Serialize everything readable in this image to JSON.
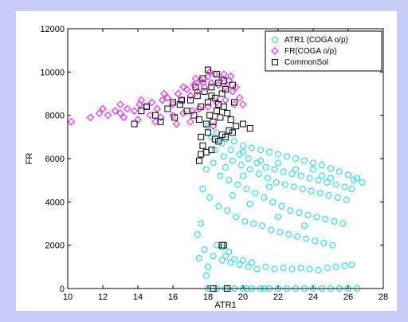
{
  "window": {
    "background": "#c9ccf7"
  },
  "chart_data": {
    "type": "scatter",
    "title": "",
    "xlabel": "ATR1",
    "ylabel": "FR",
    "xlim": [
      10,
      28
    ],
    "ylim": [
      0,
      12000
    ],
    "xticks": [
      10,
      12,
      14,
      16,
      18,
      20,
      22,
      24,
      26,
      28
    ],
    "yticks": [
      0,
      2000,
      4000,
      6000,
      8000,
      10000,
      12000
    ],
    "grid": false,
    "legend_position": "top-right",
    "series": [
      {
        "name": "ATR1 (COGA o/p)",
        "marker": "circle",
        "color": "#00e5e5",
        "points": [
          [
            18.0,
            7500
          ],
          [
            18.5,
            7200
          ],
          [
            19.0,
            6900
          ],
          [
            19.5,
            6800
          ],
          [
            20.0,
            6600
          ],
          [
            20.5,
            6500
          ],
          [
            21.0,
            6400
          ],
          [
            21.5,
            6300
          ],
          [
            22.0,
            6200
          ],
          [
            22.5,
            6100
          ],
          [
            23.0,
            6000
          ],
          [
            23.5,
            5900
          ],
          [
            24.0,
            5800
          ],
          [
            24.5,
            5700
          ],
          [
            25.0,
            5550
          ],
          [
            25.5,
            5400
          ],
          [
            26.0,
            5250
          ],
          [
            26.5,
            5100
          ],
          [
            26.8,
            4900
          ],
          [
            26.3,
            5000
          ],
          [
            18.2,
            7000
          ],
          [
            18.8,
            6700
          ],
          [
            19.3,
            6400
          ],
          [
            19.8,
            6200
          ],
          [
            20.3,
            6000
          ],
          [
            20.8,
            5800
          ],
          [
            21.3,
            5600
          ],
          [
            21.8,
            5500
          ],
          [
            22.3,
            5400
          ],
          [
            22.8,
            5300
          ],
          [
            23.3,
            5200
          ],
          [
            23.8,
            5100
          ],
          [
            24.3,
            5000
          ],
          [
            24.8,
            4900
          ],
          [
            25.3,
            4800
          ],
          [
            25.8,
            4700
          ],
          [
            26.2,
            4600
          ],
          [
            24.0,
            5500
          ],
          [
            25.0,
            5100
          ],
          [
            22.0,
            5800
          ],
          [
            18.4,
            6400
          ],
          [
            18.9,
            6100
          ],
          [
            19.4,
            5900
          ],
          [
            19.9,
            5700
          ],
          [
            20.4,
            5500
          ],
          [
            20.9,
            5300
          ],
          [
            21.4,
            5100
          ],
          [
            21.9,
            4900
          ],
          [
            22.4,
            4800
          ],
          [
            22.9,
            4700
          ],
          [
            23.4,
            4600
          ],
          [
            23.9,
            4500
          ],
          [
            24.4,
            4400
          ],
          [
            24.9,
            4300
          ],
          [
            25.4,
            4200
          ],
          [
            25.9,
            4100
          ],
          [
            21.0,
            5900
          ],
          [
            20.0,
            6300
          ],
          [
            23.0,
            5500
          ],
          [
            24.5,
            5200
          ],
          [
            17.9,
            5500
          ],
          [
            18.3,
            5800
          ],
          [
            18.7,
            5200
          ],
          [
            19.2,
            5000
          ],
          [
            19.7,
            4800
          ],
          [
            20.2,
            4600
          ],
          [
            20.7,
            4400
          ],
          [
            21.2,
            4200
          ],
          [
            21.7,
            4000
          ],
          [
            22.2,
            3800
          ],
          [
            22.7,
            3600
          ],
          [
            23.2,
            3500
          ],
          [
            23.7,
            3400
          ],
          [
            24.2,
            3300
          ],
          [
            24.7,
            3200
          ],
          [
            25.2,
            3100
          ],
          [
            25.7,
            3000
          ],
          [
            19.0,
            5600
          ],
          [
            20.0,
            5200
          ],
          [
            21.5,
            4700
          ],
          [
            17.7,
            4600
          ],
          [
            18.1,
            4200
          ],
          [
            18.6,
            3800
          ],
          [
            19.1,
            3600
          ],
          [
            19.6,
            3300
          ],
          [
            20.1,
            3100
          ],
          [
            20.6,
            3000
          ],
          [
            21.1,
            2900
          ],
          [
            21.6,
            2700
          ],
          [
            22.1,
            2600
          ],
          [
            22.6,
            2500
          ],
          [
            23.1,
            2400
          ],
          [
            23.6,
            2300
          ],
          [
            24.1,
            2200
          ],
          [
            24.6,
            2100
          ],
          [
            25.1,
            2000
          ],
          [
            19.4,
            4300
          ],
          [
            20.4,
            3900
          ],
          [
            22.0,
            3300
          ],
          [
            23.5,
            2900
          ],
          [
            17.6,
            3000
          ],
          [
            17.4,
            2500
          ],
          [
            17.8,
            1800
          ],
          [
            18.3,
            1500
          ],
          [
            18.8,
            1300
          ],
          [
            19.3,
            1200
          ],
          [
            19.8,
            1100
          ],
          [
            20.3,
            1000
          ],
          [
            20.8,
            900
          ],
          [
            21.3,
            1000
          ],
          [
            21.8,
            900
          ],
          [
            22.3,
            950
          ],
          [
            22.8,
            900
          ],
          [
            23.3,
            950
          ],
          [
            23.8,
            900
          ],
          [
            24.3,
            850
          ],
          [
            24.8,
            950
          ],
          [
            25.3,
            1000
          ],
          [
            25.8,
            1050
          ],
          [
            26.2,
            1100
          ],
          [
            18.5,
            2000
          ],
          [
            19.0,
            1500
          ],
          [
            19.5,
            1350
          ],
          [
            20.0,
            1300
          ],
          [
            18.8,
            1900
          ],
          [
            19.2,
            1700
          ],
          [
            17.5,
            1400
          ],
          [
            18.0,
            1000
          ],
          [
            17.9,
            600
          ],
          [
            20.5,
            1200
          ],
          [
            18.0,
            0
          ],
          [
            18.5,
            0
          ],
          [
            19.0,
            0
          ],
          [
            19.5,
            0
          ],
          [
            20.0,
            0
          ],
          [
            20.5,
            0
          ],
          [
            21.0,
            0
          ],
          [
            21.5,
            0
          ],
          [
            22.0,
            0
          ],
          [
            22.5,
            0
          ],
          [
            23.0,
            0
          ],
          [
            23.5,
            0
          ],
          [
            24.0,
            0
          ],
          [
            24.5,
            0
          ],
          [
            25.0,
            0
          ],
          [
            25.5,
            0
          ],
          [
            26.0,
            0
          ],
          [
            26.5,
            0
          ],
          [
            20.2,
            0
          ],
          [
            21.2,
            0
          ]
        ]
      },
      {
        "name": "FR(COGA o/p)",
        "marker": "diamond",
        "color": "#ff00ff",
        "points": [
          [
            10.2,
            7700
          ],
          [
            11.3,
            7900
          ],
          [
            11.8,
            8100
          ],
          [
            12.3,
            8000
          ],
          [
            12.7,
            8200
          ],
          [
            13.0,
            8100
          ],
          [
            13.4,
            8300
          ],
          [
            13.8,
            8200
          ],
          [
            14.1,
            8500
          ],
          [
            14.5,
            8400
          ],
          [
            14.8,
            8600
          ],
          [
            15.1,
            8300
          ],
          [
            15.4,
            8700
          ],
          [
            15.7,
            8800
          ],
          [
            16.0,
            8500
          ],
          [
            16.3,
            9000
          ],
          [
            16.5,
            8700
          ],
          [
            16.8,
            9200
          ],
          [
            17.0,
            8900
          ],
          [
            17.2,
            9400
          ],
          [
            17.4,
            9100
          ],
          [
            17.6,
            9600
          ],
          [
            17.8,
            9300
          ],
          [
            18.0,
            9800
          ],
          [
            18.2,
            9500
          ],
          [
            18.4,
            9900
          ],
          [
            18.6,
            9400
          ],
          [
            18.8,
            9700
          ],
          [
            19.0,
            9300
          ],
          [
            19.2,
            9600
          ],
          [
            19.4,
            9100
          ],
          [
            19.6,
            9300
          ],
          [
            19.8,
            8800
          ],
          [
            20.0,
            8500
          ],
          [
            13.2,
            7900
          ],
          [
            14.0,
            7800
          ],
          [
            14.7,
            8000
          ],
          [
            15.3,
            7900
          ],
          [
            16.0,
            8000
          ],
          [
            16.6,
            8100
          ],
          [
            17.1,
            8200
          ],
          [
            17.5,
            8300
          ],
          [
            18.0,
            8400
          ],
          [
            18.5,
            8600
          ],
          [
            19.0,
            8700
          ],
          [
            19.5,
            8500
          ],
          [
            15.0,
            7700
          ],
          [
            16.2,
            7600
          ],
          [
            17.0,
            7700
          ],
          [
            18.3,
            7500
          ],
          [
            12.0,
            8300
          ],
          [
            13.0,
            8500
          ],
          [
            14.2,
            8700
          ],
          [
            15.5,
            9000
          ],
          [
            16.6,
            9300
          ],
          [
            17.7,
            9500
          ],
          [
            18.9,
            9900
          ],
          [
            19.3,
            9800
          ],
          [
            18.1,
            10000
          ],
          [
            17.3,
            9700
          ]
        ]
      },
      {
        "name": "CommonSol",
        "marker": "square",
        "color": "#000000",
        "points": [
          [
            13.8,
            7600
          ],
          [
            14.2,
            8200
          ],
          [
            14.5,
            8400
          ],
          [
            15.0,
            8000
          ],
          [
            15.3,
            7700
          ],
          [
            15.7,
            8300
          ],
          [
            16.1,
            7900
          ],
          [
            16.4,
            8500
          ],
          [
            16.8,
            8200
          ],
          [
            17.0,
            8700
          ],
          [
            17.2,
            8000
          ],
          [
            17.4,
            8900
          ],
          [
            17.6,
            8400
          ],
          [
            17.8,
            9100
          ],
          [
            18.0,
            8600
          ],
          [
            18.2,
            9300
          ],
          [
            18.4,
            8800
          ],
          [
            18.6,
            9500
          ],
          [
            18.8,
            9000
          ],
          [
            19.0,
            9200
          ],
          [
            17.5,
            7800
          ],
          [
            17.9,
            7600
          ],
          [
            18.1,
            8000
          ],
          [
            18.3,
            7700
          ],
          [
            18.5,
            8200
          ],
          [
            18.7,
            7900
          ],
          [
            18.9,
            8400
          ],
          [
            19.1,
            8100
          ],
          [
            19.3,
            7800
          ],
          [
            19.5,
            8600
          ],
          [
            17.6,
            7000
          ],
          [
            18.0,
            7200
          ],
          [
            18.4,
            6900
          ],
          [
            18.8,
            7100
          ],
          [
            19.2,
            7300
          ],
          [
            19.6,
            7500
          ],
          [
            20.0,
            7600
          ],
          [
            20.4,
            7400
          ],
          [
            17.7,
            6600
          ],
          [
            17.9,
            6300
          ],
          [
            18.2,
            6400
          ],
          [
            17.5,
            5900
          ],
          [
            17.6,
            6200
          ],
          [
            18.6,
            6800
          ],
          [
            19.0,
            7000
          ],
          [
            19.4,
            7200
          ],
          [
            16.5,
            8700
          ],
          [
            16.0,
            8600
          ],
          [
            18.0,
            10100
          ],
          [
            18.5,
            9900
          ],
          [
            17.3,
            9300
          ],
          [
            17.7,
            9700
          ],
          [
            18.9,
            9600
          ],
          [
            19.4,
            9400
          ],
          [
            18.8,
            2000
          ],
          [
            18.9,
            2000
          ],
          [
            18.3,
            0
          ],
          [
            19.1,
            0
          ],
          [
            18.6,
            8500
          ],
          [
            18.2,
            8900
          ]
        ]
      }
    ]
  }
}
